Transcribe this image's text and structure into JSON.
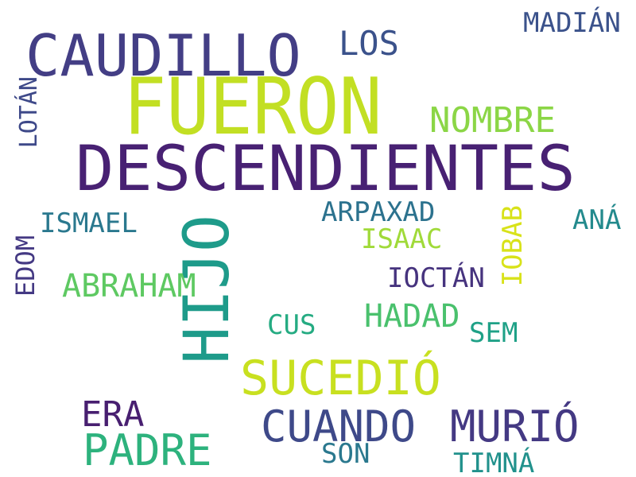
{
  "cloud": {
    "words": [
      {
        "key": "fueron",
        "text": "FUERON",
        "color": "#c2df23"
      },
      {
        "key": "descendientes",
        "text": "DESCENDIENTES",
        "color": "#482173"
      },
      {
        "key": "caudillo",
        "text": "CAUDILLO",
        "color": "#433e85"
      },
      {
        "key": "hijo",
        "text": "HIJO",
        "color": "#1e9b8a"
      },
      {
        "key": "sucedio",
        "text": "SUCEDIÓ",
        "color": "#c8e020"
      },
      {
        "key": "cuando",
        "text": "CUANDO",
        "color": "#3e4989"
      },
      {
        "key": "murio",
        "text": "MURIÓ",
        "color": "#443983"
      },
      {
        "key": "padre",
        "text": "PADRE",
        "color": "#2db27d"
      },
      {
        "key": "nombre",
        "text": "NOMBRE",
        "color": "#8bd646"
      },
      {
        "key": "los",
        "text": "LOS",
        "color": "#3b528b"
      },
      {
        "key": "madian",
        "text": "MADIÁN",
        "color": "#3b528b"
      },
      {
        "key": "lotan",
        "text": "LOTÁN",
        "color": "#3e4989"
      },
      {
        "key": "ismael",
        "text": "ISMAEL",
        "color": "#2a788e"
      },
      {
        "key": "edom",
        "text": "EDOM",
        "color": "#443983"
      },
      {
        "key": "abraham",
        "text": "ABRAHAM",
        "color": "#5ec962"
      },
      {
        "key": "arpaxad",
        "text": "ARPAXAD",
        "color": "#2c728e"
      },
      {
        "key": "isaac",
        "text": "ISAAC",
        "color": "#a0da39"
      },
      {
        "key": "iobab",
        "text": "IOBAB",
        "color": "#d8e219"
      },
      {
        "key": "ana",
        "text": "ANÁ",
        "color": "#238a8d"
      },
      {
        "key": "ioctan",
        "text": "IOCTÁN",
        "color": "#46337e"
      },
      {
        "key": "hadad",
        "text": "HADAD",
        "color": "#4ac16d"
      },
      {
        "key": "cus",
        "text": "CUS",
        "color": "#25ab82"
      },
      {
        "key": "sem",
        "text": "SEM",
        "color": "#1fa187"
      },
      {
        "key": "era",
        "text": "ERA",
        "color": "#481f70"
      },
      {
        "key": "son",
        "text": "SON",
        "color": "#2a788e"
      },
      {
        "key": "timna",
        "text": "TIMNÁ",
        "color": "#21918c"
      }
    ]
  }
}
